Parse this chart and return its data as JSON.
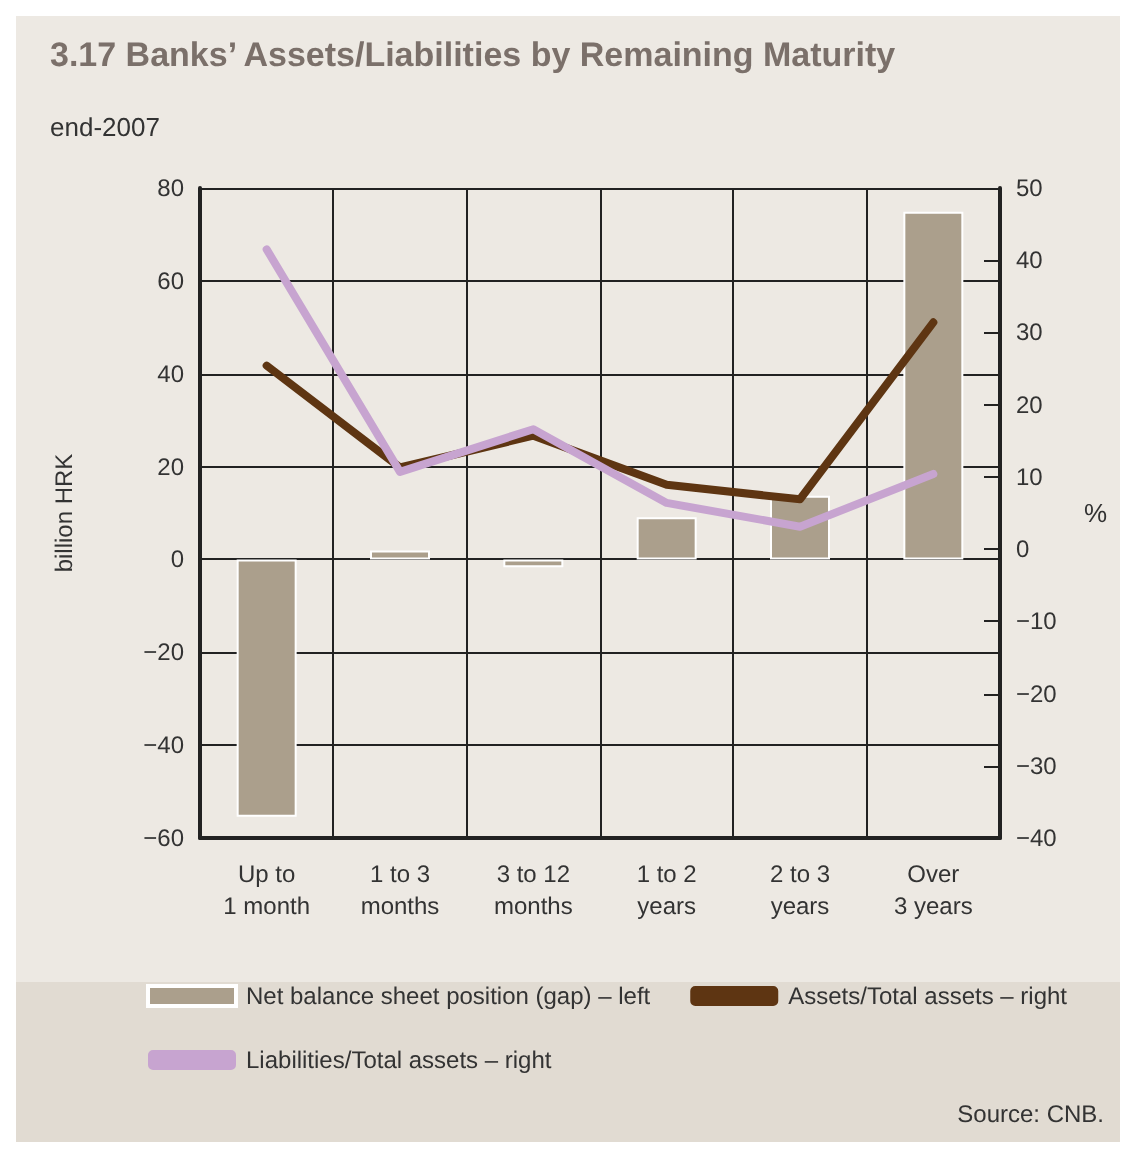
{
  "chart_data": {
    "type": "bar",
    "title": "3.17 Banks’ Assets/Liabilities by Remaining Maturity",
    "subtitle": "end-2007",
    "ylabel": "billion HRK",
    "y2label": "%",
    "categories": [
      "Up to\n1 month",
      "1 to 3\nmonths",
      "3 to 12\nmonths",
      "1 to 2\nyears",
      "2 to 3\nyears",
      "Over\n3 years"
    ],
    "series": [
      {
        "name": "Net balance sheet position (gap) – left",
        "color": "#ab9f8c",
        "values": [
          -55.4,
          1.9,
          -1.7,
          9.1,
          13.7,
          74.9
        ]
      },
      {
        "name": "Assets/Total assets – right",
        "type": "line",
        "axis": "y2",
        "color": "#5e3512",
        "values": [
          25.4,
          11.3,
          15.7,
          8.9,
          6.9,
          31.4
        ]
      },
      {
        "name": "Liabilities/Total assets – right",
        "type": "line",
        "axis": "y2",
        "color": "#c7a4d0",
        "values": [
          41.5,
          10.7,
          16.6,
          6.4,
          3.1,
          10.4
        ]
      }
    ],
    "ylim": [
      -60,
      80
    ],
    "yticks": [
      -60,
      -40,
      -20,
      0,
      20,
      40,
      60,
      80
    ],
    "y2lim": [
      -40,
      50
    ],
    "y2ticks": [
      -40,
      -30,
      -20,
      -10,
      0,
      10,
      20,
      30,
      40,
      50
    ],
    "grid": true,
    "legend": "bottom",
    "marker": "none",
    "line_style": "solid",
    "annotations": [
      "Source: CNB."
    ]
  }
}
